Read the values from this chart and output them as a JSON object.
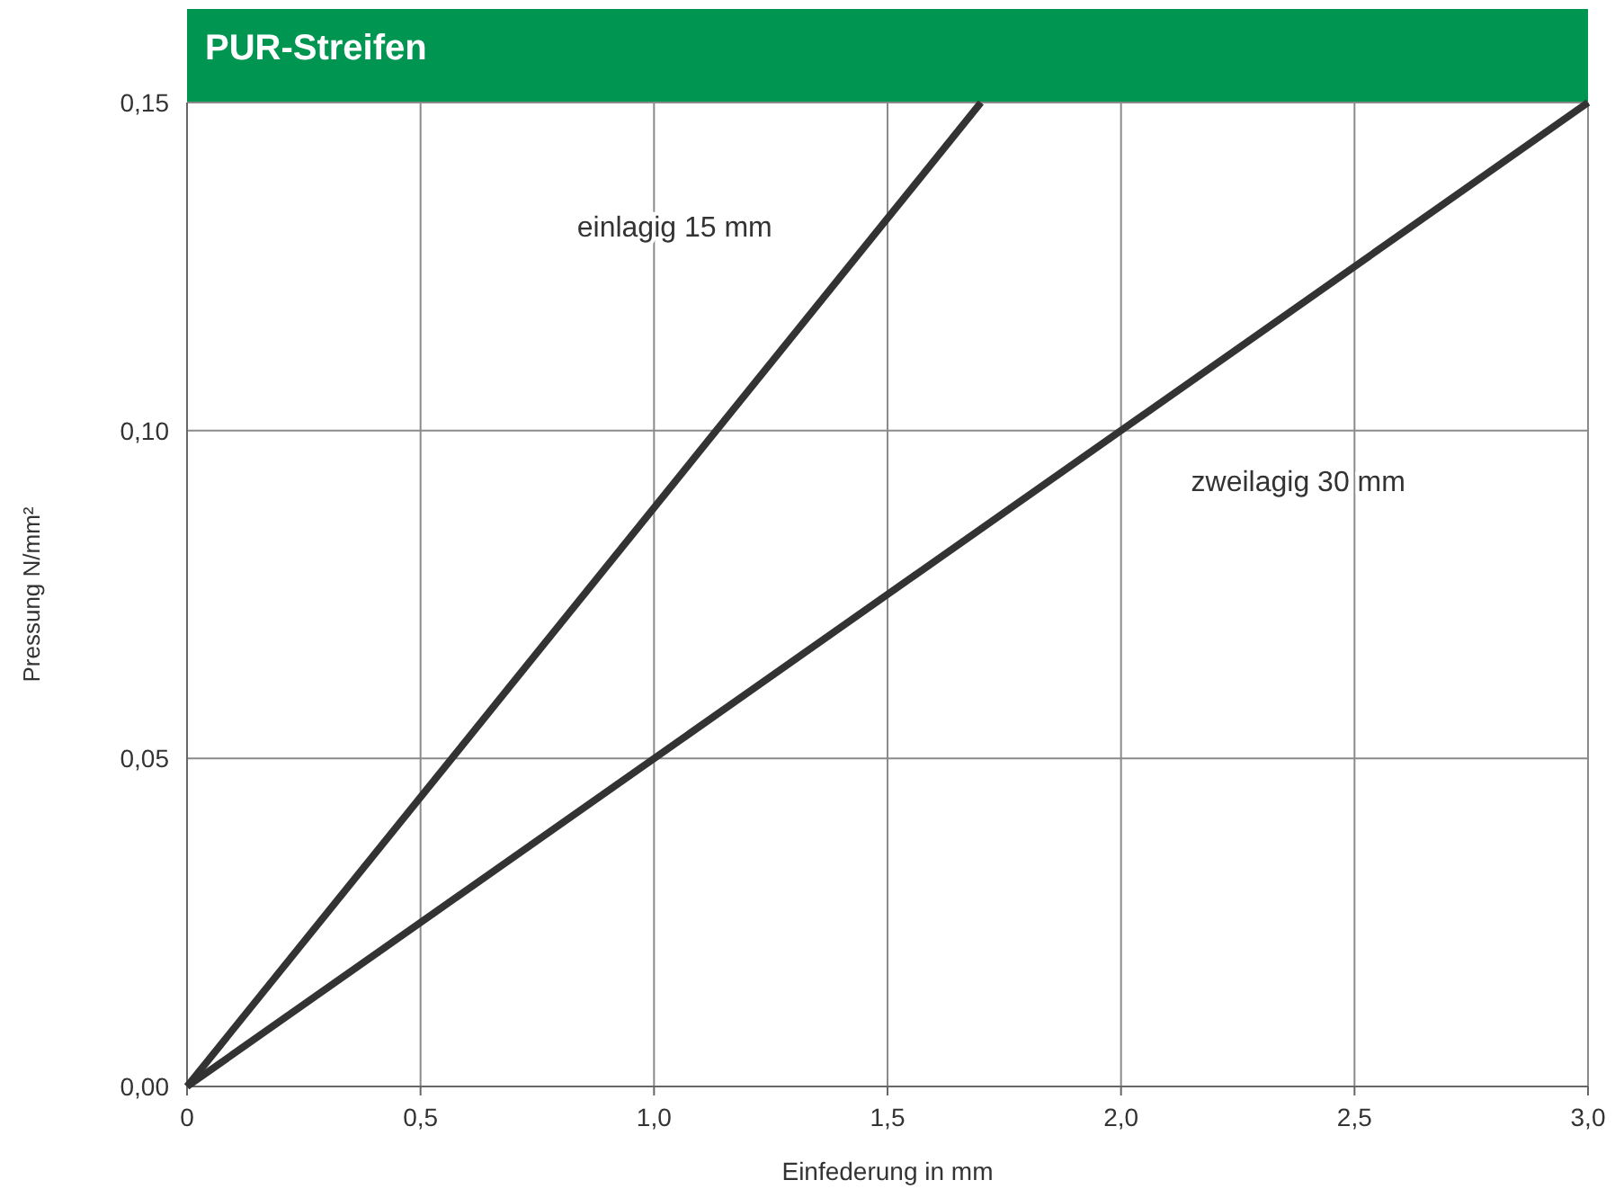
{
  "chart_data": {
    "type": "line",
    "title": "PUR-Streifen",
    "xlabel": "Einfederung in mm",
    "ylabel": "Pressung N/mm²",
    "xlim": [
      0,
      3
    ],
    "ylim": [
      0,
      0.15
    ],
    "xticks": [
      0,
      {
        "value": 0.5,
        "label": "0,5"
      },
      {
        "value": 1,
        "label": "1,0"
      },
      {
        "value": 1.5,
        "label": "1,5"
      },
      {
        "value": 2,
        "label": "2,0"
      },
      {
        "value": 2.5,
        "label": "2,5"
      },
      {
        "value": 3,
        "label": "3,0"
      }
    ],
    "yticks": [
      {
        "value": 0,
        "label": "0,00"
      },
      {
        "value": 0.05,
        "label": "0,05"
      },
      {
        "value": 0.1,
        "label": "0,10"
      },
      {
        "value": 0.15,
        "label": "0,15"
      }
    ],
    "grid": true,
    "marker": "none",
    "line_style": "solid",
    "series": [
      {
        "name": "einlagig 15 mm",
        "color": "#333333",
        "x": [
          0,
          1.7
        ],
        "values": [
          0,
          0.15
        ]
      },
      {
        "name": "zweilagig 30 mm",
        "color": "#333333",
        "x": [
          0,
          3
        ],
        "values": [
          0,
          0.15
        ]
      }
    ]
  }
}
